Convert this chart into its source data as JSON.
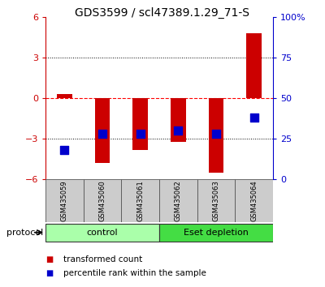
{
  "title": "GDS3599 / scl47389.1.29_71-S",
  "samples": [
    "GSM435059",
    "GSM435060",
    "GSM435061",
    "GSM435062",
    "GSM435063",
    "GSM435064"
  ],
  "transformed_counts": [
    0.3,
    -4.8,
    -3.8,
    -3.2,
    -5.5,
    4.8
  ],
  "percentile_ranks": [
    18,
    28,
    28,
    30,
    28,
    38
  ],
  "ylim_left": [
    -6,
    6
  ],
  "ylim_right": [
    0,
    100
  ],
  "yticks_left": [
    -6,
    -3,
    0,
    3,
    6
  ],
  "yticks_right": [
    0,
    25,
    50,
    75,
    100
  ],
  "yticklabels_right": [
    "0",
    "25",
    "50",
    "75",
    "100%"
  ],
  "bar_color": "#cc0000",
  "dot_color": "#0000cc",
  "bar_width": 0.4,
  "dot_size": 50,
  "protocol_groups": [
    {
      "label": "control",
      "start": 0,
      "end": 2,
      "color": "#aaffaa"
    },
    {
      "label": "Eset depletion",
      "start": 3,
      "end": 5,
      "color": "#44dd44"
    }
  ],
  "protocol_label": "protocol",
  "legend_items": [
    {
      "color": "#cc0000",
      "label": "transformed count"
    },
    {
      "color": "#0000cc",
      "label": "percentile rank within the sample"
    }
  ],
  "axis_color_left": "#cc0000",
  "axis_color_right": "#0000cc",
  "title_fontsize": 10,
  "tick_fontsize": 8,
  "sample_fontsize": 6,
  "legend_fontsize": 7.5,
  "protocol_fontsize": 8
}
